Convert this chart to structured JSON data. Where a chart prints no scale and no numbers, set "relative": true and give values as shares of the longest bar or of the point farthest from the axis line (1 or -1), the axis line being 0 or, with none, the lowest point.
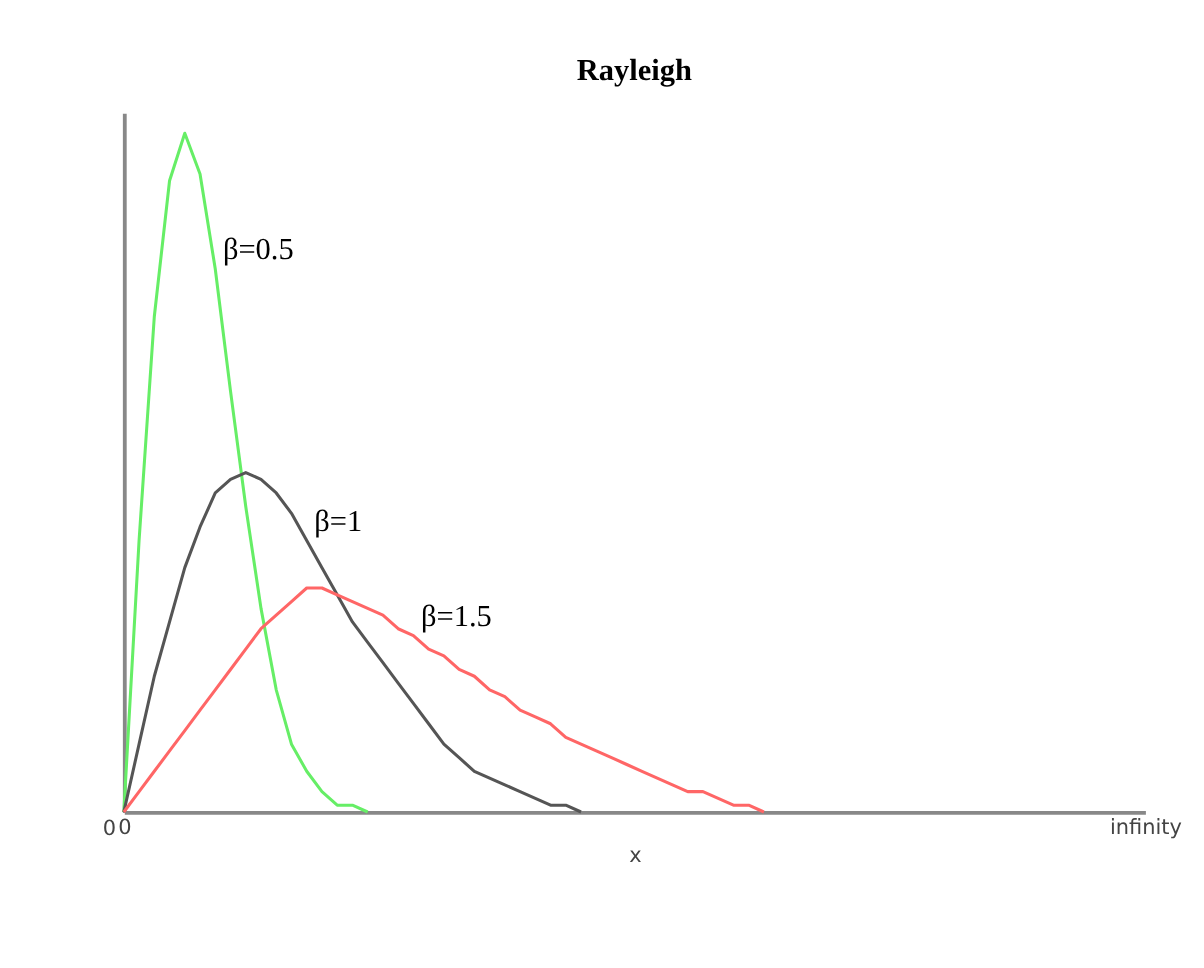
{
  "chart_data": {
    "type": "line",
    "title": "Rayleigh",
    "xlabel": "x",
    "relative": true,
    "categories": [
      "0",
      null,
      null,
      null,
      null,
      null,
      null,
      null,
      null,
      null,
      null,
      null,
      null,
      null,
      null,
      null,
      null,
      null,
      null,
      null,
      null,
      null,
      null,
      null,
      null,
      null,
      null,
      null,
      null,
      null,
      null,
      null,
      null,
      null,
      null,
      null,
      null,
      null,
      null,
      null,
      null,
      null,
      null,
      null,
      null,
      null,
      null,
      null,
      null,
      null,
      null,
      null,
      null,
      null,
      null,
      null,
      null,
      null,
      null,
      null,
      null,
      null,
      null,
      null,
      null,
      null,
      null,
      "infinity"
    ],
    "tick_labels": "x",
    "grid": false,
    "marker": "none",
    "line_style": "solid",
    "annotations": [
      "0"
    ],
    "series": [
      {
        "name": "β=0.5",
        "color": "#66ee66",
        "values": [
          0,
          0.4,
          0.73,
          0.93,
          1,
          0.94,
          0.8,
          0.62,
          0.45,
          0.3,
          0.18,
          0.1,
          0.06,
          0.03,
          0.01,
          0.01,
          0,
          null,
          null,
          null,
          null,
          null,
          null,
          null,
          null,
          null,
          null,
          null,
          null,
          null,
          null,
          null,
          null,
          null,
          null,
          null,
          null,
          null,
          null,
          null,
          null,
          null,
          null,
          null,
          null,
          null,
          null,
          null,
          null,
          null,
          null,
          null,
          null,
          null,
          null,
          null,
          null,
          null,
          null,
          null,
          null,
          null,
          null,
          null,
          null,
          null,
          null,
          null
        ]
      },
      {
        "name": "β=1",
        "color": "#555555",
        "values": [
          0,
          0.1,
          0.2,
          0.28,
          0.36,
          0.42,
          0.47,
          0.49,
          0.5,
          0.49,
          0.47,
          0.44,
          0.4,
          0.36,
          0.32,
          0.28,
          0.25,
          0.22,
          0.19,
          0.16,
          0.13,
          0.1,
          0.08,
          0.06,
          0.05,
          0.04,
          0.03,
          0.02,
          0.01,
          0.01,
          0,
          null,
          null,
          null,
          null,
          null,
          null,
          null,
          null,
          null,
          null,
          null,
          null,
          null,
          null,
          null,
          null,
          null,
          null,
          null,
          null,
          null,
          null,
          null,
          null,
          null,
          null,
          null,
          null,
          null,
          null,
          null,
          null,
          null,
          null,
          null,
          null,
          null
        ]
      },
      {
        "name": "β=1.5",
        "color": "#ff6666",
        "values": [
          0,
          0.03,
          0.06,
          0.09,
          0.12,
          0.15,
          0.18,
          0.21,
          0.24,
          0.27,
          0.29,
          0.31,
          0.33,
          0.33,
          0.32,
          0.31,
          0.3,
          0.29,
          0.27,
          0.26,
          0.24,
          0.23,
          0.21,
          0.2,
          0.18,
          0.17,
          0.15,
          0.14,
          0.13,
          0.11,
          0.1,
          0.09,
          0.08,
          0.07,
          0.06,
          0.05,
          0.04,
          0.03,
          0.03,
          0.02,
          0.01,
          0.01,
          0,
          null,
          null,
          null,
          null,
          null,
          null,
          null,
          null,
          null,
          null,
          null,
          null,
          null,
          null,
          null,
          null,
          null,
          null,
          null,
          null,
          null,
          null,
          null,
          null,
          null
        ]
      }
    ]
  }
}
